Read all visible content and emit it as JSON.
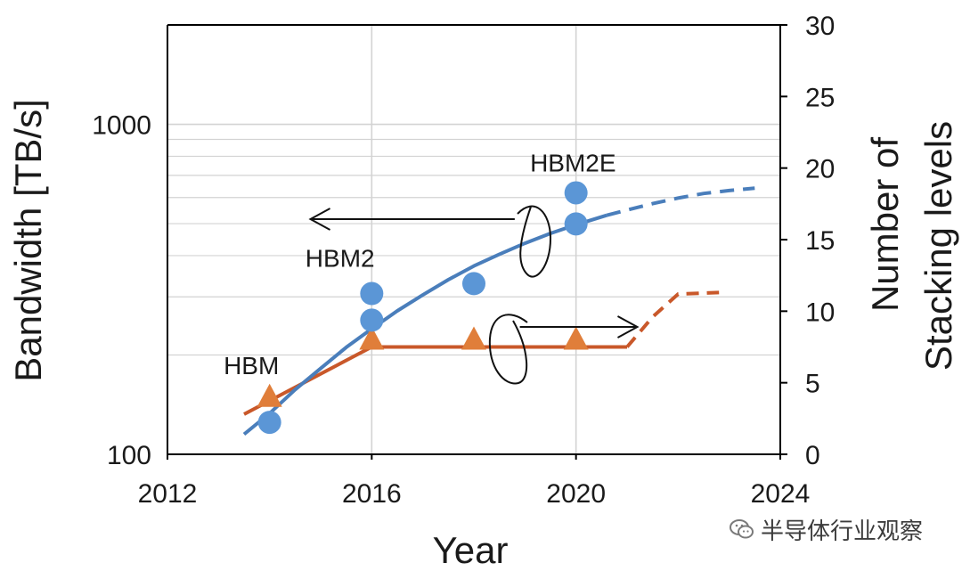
{
  "chart_data": {
    "type": "line+scatter",
    "xlabel": "Year",
    "ylabel_left": "Bandwidth [TB/s]",
    "ylabel_right": "Number of Stacking levels",
    "ylabel_right_lines": [
      "Number of",
      "Stacking levels"
    ],
    "xlim": [
      2012,
      2024
    ],
    "x_ticks": [
      2012,
      2016,
      2020,
      2024
    ],
    "ylim_left": [
      100,
      2000
    ],
    "ylog_left": true,
    "y_ticks_left": [
      100,
      1000
    ],
    "ylim_right": [
      0,
      30
    ],
    "y_ticks_right": [
      0,
      5,
      10,
      15,
      20,
      25,
      30
    ],
    "grid": true,
    "bandwidth_points": [
      {
        "x": 2014,
        "y": 125
      },
      {
        "x": 2016,
        "y": 255
      },
      {
        "x": 2016,
        "y": 307
      },
      {
        "x": 2018,
        "y": 329
      },
      {
        "x": 2020,
        "y": 499
      },
      {
        "x": 2020,
        "y": 620
      }
    ],
    "bandwidth_fit_solid": [
      {
        "x": 2013.5,
        "y": 115
      },
      {
        "x": 2014,
        "y": 133
      },
      {
        "x": 2014.5,
        "y": 157
      },
      {
        "x": 2015,
        "y": 182
      },
      {
        "x": 2015.5,
        "y": 211
      },
      {
        "x": 2016,
        "y": 240
      },
      {
        "x": 2016.5,
        "y": 272
      },
      {
        "x": 2017,
        "y": 304
      },
      {
        "x": 2017.5,
        "y": 338
      },
      {
        "x": 2018,
        "y": 372
      },
      {
        "x": 2018.5,
        "y": 404
      },
      {
        "x": 2019,
        "y": 436
      },
      {
        "x": 2019.5,
        "y": 467
      },
      {
        "x": 2020,
        "y": 496
      },
      {
        "x": 2020.6,
        "y": 530
      }
    ],
    "bandwidth_fit_dashed": [
      {
        "x": 2020.6,
        "y": 530
      },
      {
        "x": 2021,
        "y": 550
      },
      {
        "x": 2021.5,
        "y": 575
      },
      {
        "x": 2022,
        "y": 598
      },
      {
        "x": 2022.5,
        "y": 617
      },
      {
        "x": 2023,
        "y": 630
      },
      {
        "x": 2023.5,
        "y": 640
      }
    ],
    "stacking_points": [
      {
        "x": 2014,
        "y": 4
      },
      {
        "x": 2016,
        "y": 8
      },
      {
        "x": 2018,
        "y": 8
      },
      {
        "x": 2020,
        "y": 8
      }
    ],
    "stacking_fit_solid": [
      {
        "x": 2013.5,
        "y": 2.8
      },
      {
        "x": 2016,
        "y": 7.5
      },
      {
        "x": 2021,
        "y": 7.5
      }
    ],
    "stacking_fit_dashed": [
      {
        "x": 2021,
        "y": 7.5
      },
      {
        "x": 2021.5,
        "y": 9.6
      },
      {
        "x": 2022,
        "y": 11.2
      },
      {
        "x": 2022.8,
        "y": 11.3
      }
    ],
    "annotations": [
      {
        "text": "HBM",
        "x": 2013.1,
        "y": 175
      },
      {
        "text": "HBM2",
        "x": 2014.7,
        "y": 370
      },
      {
        "text": "HBM2E",
        "x": 2019.1,
        "y": 720
      }
    ],
    "colors": {
      "bandwidth": "#4a7ebb",
      "bandwidth_marker": "#5b96d6",
      "stacking": "#c9582a",
      "stacking_marker": "#e07e3a",
      "grid": "#d3d3d3",
      "axis": "#000000"
    }
  },
  "watermark": {
    "text": "半导体行业观察",
    "icon": "wechat-icon"
  }
}
